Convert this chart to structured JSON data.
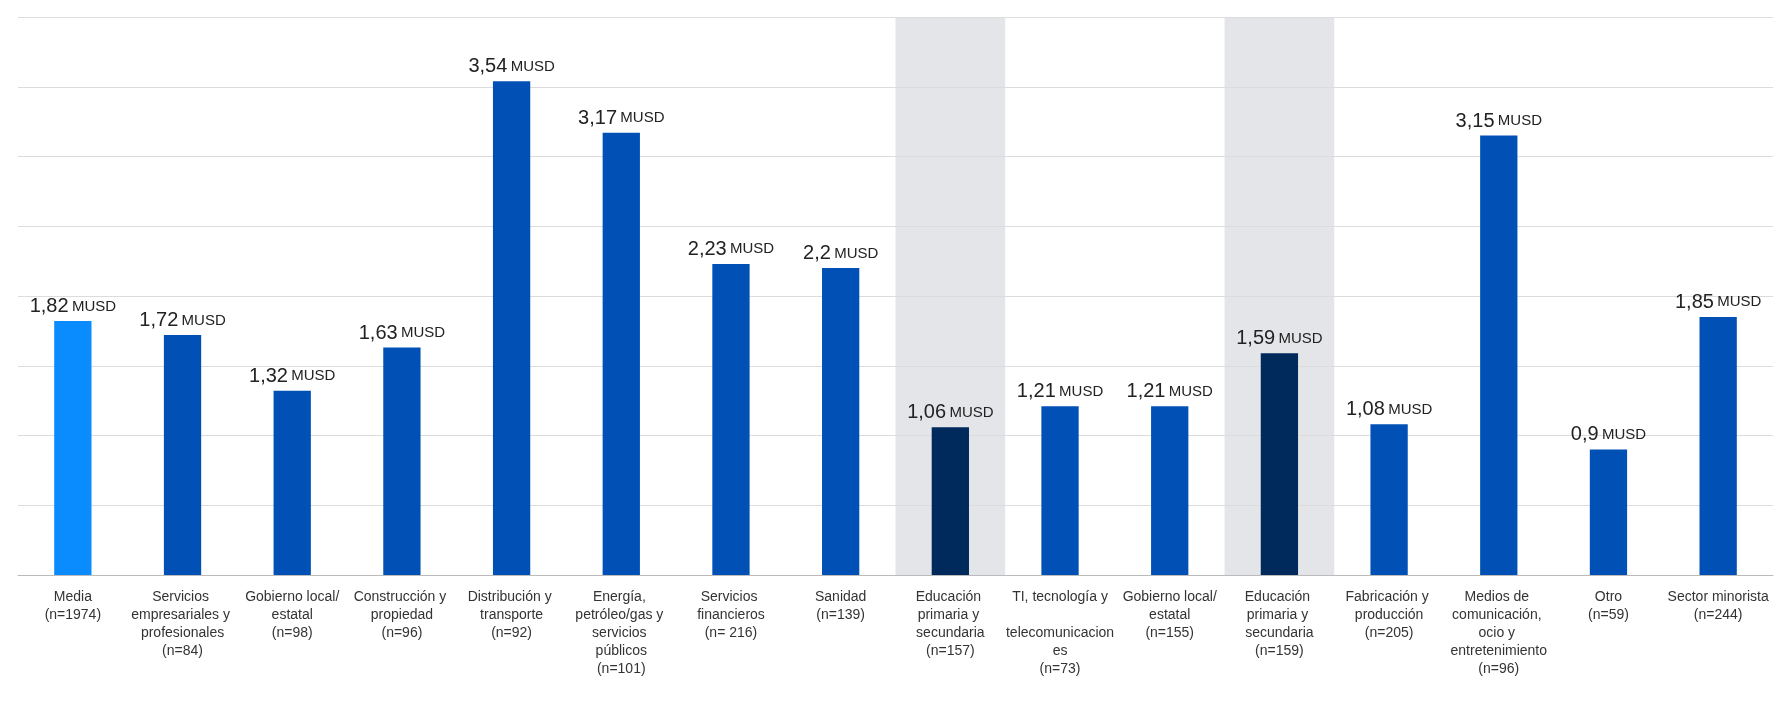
{
  "chart_data": {
    "type": "bar",
    "categories": [
      "Media\n(n=1974)",
      "Servicios empresariales y profesionales\n(n=84)",
      "Gobierno local/estatal\n(n=98)",
      "Construcción y propiedad\n(n=96)",
      "Distribución y transporte\n(n=92)",
      "Energía, petróleo/gas y servicios públicos\n(n=101)",
      "Servicios financieros\n(n= 216)",
      "Sanidad\n(n=139)",
      "Educación primaria y secundaria\n(n=157)",
      "TI, tecnología y telecomunicaciones\n(n=73)",
      "Gobierno local/estatal\n(n=155)",
      "Educación primaria y secundaria\n(n=159)",
      "Fabricación y producción\n(n=205)",
      "Medios de comunicación, ocio y entretenimiento\n(n=96)",
      "Otro\n(n=59)",
      "Sector minorista\n(n=244)"
    ],
    "values": [
      1.82,
      1.72,
      1.32,
      1.63,
      3.54,
      3.17,
      2.23,
      2.2,
      1.06,
      1.21,
      1.21,
      1.59,
      1.08,
      3.15,
      0.9,
      1.85
    ],
    "colors": [
      "#0a8cff",
      "#0050b5",
      "#0050b5",
      "#0050b5",
      "#0050b5",
      "#0050b5",
      "#0050b5",
      "#0050b5",
      "#002a5c",
      "#0050b5",
      "#0050b5",
      "#002a5c",
      "#0050b5",
      "#0050b5",
      "#0050b5",
      "#0050b5"
    ],
    "value_labels": [
      "1,82 MUSD",
      "1,72 MUSD",
      "1,32 MUSD",
      "1,63 MUSD",
      "3,54 MUSD",
      "3,17 MUSD",
      "2,23 MUSD",
      "2,2 MUSD",
      "1,06 MUSD",
      "1,21 MUSD",
      "1,21 MUSD",
      "1,59 MUSD",
      "1,08 MUSD",
      "3,15 MUSD",
      "0,9 MUSD",
      "1,85 MUSD"
    ],
    "bands": [
      {
        "axis": "x",
        "from": "Educación primaria y secundaria\n(n=157)",
        "to": "Educación primaria y secundaria\n(n=157)",
        "color": "#e4e5e8"
      },
      {
        "axis": "x",
        "from": "Educación primaria y secundaria\n(n=159)",
        "to": "Educación primaria y secundaria\n(n=159)",
        "color": "#e4e5e8"
      }
    ],
    "ylim": [
      0,
      4
    ],
    "yticks": [
      {
        "value": 0,
        "label": null
      },
      {
        "value": 0.5,
        "label": null
      },
      {
        "value": 1,
        "label": null
      },
      {
        "value": 1.5,
        "label": null
      },
      {
        "value": 2,
        "label": null
      },
      {
        "value": 2.5,
        "label": null
      },
      {
        "value": 3,
        "label": null
      },
      {
        "value": 3.5,
        "label": null
      },
      {
        "value": 4,
        "label": null
      }
    ],
    "tick_labels": "x",
    "grid": "y"
  }
}
